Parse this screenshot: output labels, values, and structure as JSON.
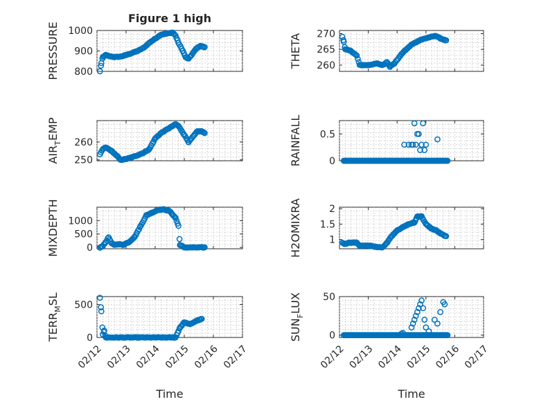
{
  "chart_data": [
    {
      "type": "scatter",
      "title": "Figure 1 high",
      "ylabel": "PRESSURE",
      "ylabel_sub": "",
      "ylabel_tail": "",
      "xlabel": "",
      "xlim": [
        "02/12",
        "02/17"
      ],
      "ylim": [
        800,
        1000
      ],
      "yticks": [
        800,
        900,
        1000
      ],
      "x_ticklabels_visible": false,
      "grid": true,
      "keys": [
        [
          0.1,
          800
        ],
        [
          0.15,
          840
        ],
        [
          0.2,
          870
        ],
        [
          0.3,
          880
        ],
        [
          0.4,
          875
        ],
        [
          0.6,
          870
        ],
        [
          0.8,
          872
        ],
        [
          1,
          880
        ],
        [
          1.2,
          890
        ],
        [
          1.4,
          900
        ],
        [
          1.6,
          915
        ],
        [
          1.8,
          940
        ],
        [
          2.0,
          960
        ],
        [
          2.2,
          980
        ],
        [
          2.4,
          985
        ],
        [
          2.6,
          990
        ],
        [
          2.7,
          975
        ],
        [
          2.8,
          940
        ],
        [
          2.95,
          900
        ],
        [
          3.05,
          868
        ],
        [
          3.15,
          862
        ],
        [
          3.3,
          890
        ],
        [
          3.4,
          910
        ],
        [
          3.55,
          925
        ],
        [
          3.7,
          918
        ]
      ]
    },
    {
      "type": "scatter",
      "title": "",
      "ylabel": "THETA",
      "ylabel_sub": "",
      "ylabel_tail": "",
      "xlabel": "",
      "xlim": [
        "02/12",
        "02/17"
      ],
      "ylim": [
        258,
        271
      ],
      "yticks": [
        260,
        265,
        270
      ],
      "x_ticklabels_visible": false,
      "grid": true,
      "keys": [
        [
          0.1,
          269
        ],
        [
          0.15,
          267.5
        ],
        [
          0.2,
          265
        ],
        [
          0.4,
          264.5
        ],
        [
          0.6,
          263
        ],
        [
          0.7,
          260
        ],
        [
          1.0,
          260
        ],
        [
          1.3,
          260.5
        ],
        [
          1.5,
          260
        ],
        [
          1.65,
          261
        ],
        [
          1.75,
          259.5
        ],
        [
          1.9,
          260.5
        ],
        [
          2.2,
          264
        ],
        [
          2.5,
          266.5
        ],
        [
          2.8,
          268
        ],
        [
          3.1,
          268.8
        ],
        [
          3.35,
          269.3
        ],
        [
          3.5,
          268.5
        ],
        [
          3.7,
          267.8
        ]
      ]
    },
    {
      "type": "scatter",
      "title": "",
      "ylabel": "AIR",
      "ylabel_sub": "T",
      "ylabel_tail": "EMP",
      "xlabel": "",
      "xlim": [
        "02/12",
        "02/17"
      ],
      "ylim": [
        249.5,
        272
      ],
      "yticks": [
        250,
        260
      ],
      "x_ticklabels_visible": false,
      "grid": true,
      "keys": [
        [
          0.1,
          253
        ],
        [
          0.2,
          256
        ],
        [
          0.3,
          257
        ],
        [
          0.5,
          255
        ],
        [
          0.7,
          252
        ],
        [
          0.8,
          250
        ],
        [
          1,
          250.5
        ],
        [
          1.3,
          252
        ],
        [
          1.6,
          254
        ],
        [
          1.8,
          256
        ],
        [
          2.0,
          262
        ],
        [
          2.2,
          265
        ],
        [
          2.5,
          268
        ],
        [
          2.7,
          270
        ],
        [
          2.8,
          269
        ],
        [
          3.0,
          264
        ],
        [
          3.15,
          260
        ],
        [
          3.25,
          262
        ],
        [
          3.45,
          266
        ],
        [
          3.6,
          266
        ],
        [
          3.7,
          265
        ]
      ]
    },
    {
      "type": "scatter",
      "title": "",
      "ylabel": "RAINFALL",
      "ylabel_sub": "",
      "ylabel_tail": "",
      "xlabel": "",
      "xlim": [
        "02/12",
        "02/17"
      ],
      "ylim": [
        0,
        0.75
      ],
      "yticks": [
        0,
        0.5
      ],
      "x_ticklabels_visible": false,
      "grid": true,
      "zero_range": [
        0.15,
        3.75
      ],
      "points": [
        [
          2.25,
          0.3
        ],
        [
          2.4,
          0.3
        ],
        [
          2.5,
          0.3
        ],
        [
          2.55,
          0.3
        ],
        [
          2.6,
          0.7
        ],
        [
          2.65,
          0.3
        ],
        [
          2.7,
          0.5
        ],
        [
          2.75,
          0.5
        ],
        [
          2.8,
          0.2
        ],
        [
          2.85,
          0.3
        ],
        [
          2.9,
          0.7
        ],
        [
          2.95,
          0.2
        ],
        [
          3.0,
          0.3
        ],
        [
          3.4,
          0.4
        ]
      ]
    },
    {
      "type": "scatter",
      "title": "",
      "ylabel": "MIXDEPTH",
      "ylabel_sub": "",
      "ylabel_tail": "",
      "xlabel": "",
      "xlim": [
        "02/12",
        "02/17"
      ],
      "ylim": [
        -50,
        1500
      ],
      "yticks": [
        0,
        500,
        1000
      ],
      "x_ticklabels_visible": false,
      "grid": true,
      "keys": [
        [
          0.1,
          0
        ],
        [
          0.2,
          50
        ],
        [
          0.3,
          200
        ],
        [
          0.4,
          380
        ],
        [
          0.5,
          150
        ],
        [
          0.6,
          100
        ],
        [
          0.7,
          120
        ],
        [
          0.9,
          100
        ],
        [
          1.1,
          200
        ],
        [
          1.3,
          400
        ],
        [
          1.5,
          800
        ],
        [
          1.7,
          1200
        ],
        [
          1.9,
          1300
        ],
        [
          2.1,
          1400
        ],
        [
          2.3,
          1420
        ],
        [
          2.5,
          1350
        ],
        [
          2.7,
          1100
        ],
        [
          2.8,
          800
        ],
        [
          2.85,
          100
        ],
        [
          3.0,
          0
        ],
        [
          3.3,
          0
        ],
        [
          3.7,
          0
        ]
      ]
    },
    {
      "type": "scatter",
      "title": "",
      "ylabel": "H2OMIXRA",
      "ylabel_sub": "",
      "ylabel_tail": "",
      "xlabel": "",
      "xlim": [
        "02/12",
        "02/17"
      ],
      "ylim": [
        0.7,
        2.05
      ],
      "yticks": [
        1,
        1.5,
        2
      ],
      "x_ticklabels_visible": false,
      "grid": true,
      "keys": [
        [
          0.1,
          0.9
        ],
        [
          0.2,
          0.85
        ],
        [
          0.3,
          0.9
        ],
        [
          0.6,
          0.9
        ],
        [
          0.7,
          0.8
        ],
        [
          1.1,
          0.8
        ],
        [
          1.3,
          0.75
        ],
        [
          1.5,
          0.75
        ],
        [
          1.65,
          0.9
        ],
        [
          1.8,
          1.1
        ],
        [
          2.0,
          1.3
        ],
        [
          2.2,
          1.4
        ],
        [
          2.4,
          1.5
        ],
        [
          2.6,
          1.55
        ],
        [
          2.7,
          1.75
        ],
        [
          2.85,
          1.75
        ],
        [
          3.0,
          1.5
        ],
        [
          3.2,
          1.35
        ],
        [
          3.35,
          1.3
        ],
        [
          3.5,
          1.2
        ],
        [
          3.7,
          1.1
        ]
      ]
    },
    {
      "type": "scatter",
      "title": "",
      "ylabel": "TERR",
      "ylabel_sub": "M",
      "ylabel_tail": "SL",
      "xlabel": "Time",
      "xlim": [
        "02/12",
        "02/17"
      ],
      "ylim": [
        0,
        620
      ],
      "yticks": [
        0,
        500
      ],
      "xticklabels": [
        "02/12",
        "02/13",
        "02/14",
        "02/15",
        "02/16",
        "02/17"
      ],
      "x_ticklabels_visible": true,
      "grid": true,
      "keys": [
        [
          0.1,
          600
        ],
        [
          0.15,
          400
        ],
        [
          0.2,
          50
        ],
        [
          0.25,
          100
        ],
        [
          0.3,
          0
        ],
        [
          2.7,
          0
        ],
        [
          2.85,
          150
        ],
        [
          3.0,
          230
        ],
        [
          3.2,
          200
        ],
        [
          3.4,
          250
        ],
        [
          3.6,
          280
        ]
      ]
    },
    {
      "type": "scatter",
      "title": "",
      "ylabel": "SUN",
      "ylabel_sub": "F",
      "ylabel_tail": "LUX",
      "xlabel": "Time",
      "xlim": [
        "02/12",
        "02/17"
      ],
      "ylim": [
        -3,
        50
      ],
      "yticks": [
        0,
        50
      ],
      "xticklabels": [
        "02/12",
        "02/13",
        "02/14",
        "02/15",
        "02/16",
        "02/17"
      ],
      "x_ticklabels_visible": true,
      "grid": true,
      "zero_range": [
        0.15,
        3.75
      ],
      "points": [
        [
          2.15,
          2
        ],
        [
          2.2,
          3
        ],
        [
          2.5,
          10
        ],
        [
          2.55,
          15
        ],
        [
          2.6,
          20
        ],
        [
          2.65,
          25
        ],
        [
          2.7,
          30
        ],
        [
          2.75,
          35
        ],
        [
          2.8,
          40
        ],
        [
          2.85,
          45
        ],
        [
          2.9,
          35
        ],
        [
          2.95,
          20
        ],
        [
          3.0,
          10
        ],
        [
          3.1,
          5
        ],
        [
          3.3,
          20
        ],
        [
          3.4,
          15
        ],
        [
          3.5,
          30
        ],
        [
          3.6,
          43
        ],
        [
          3.65,
          40
        ]
      ]
    }
  ]
}
